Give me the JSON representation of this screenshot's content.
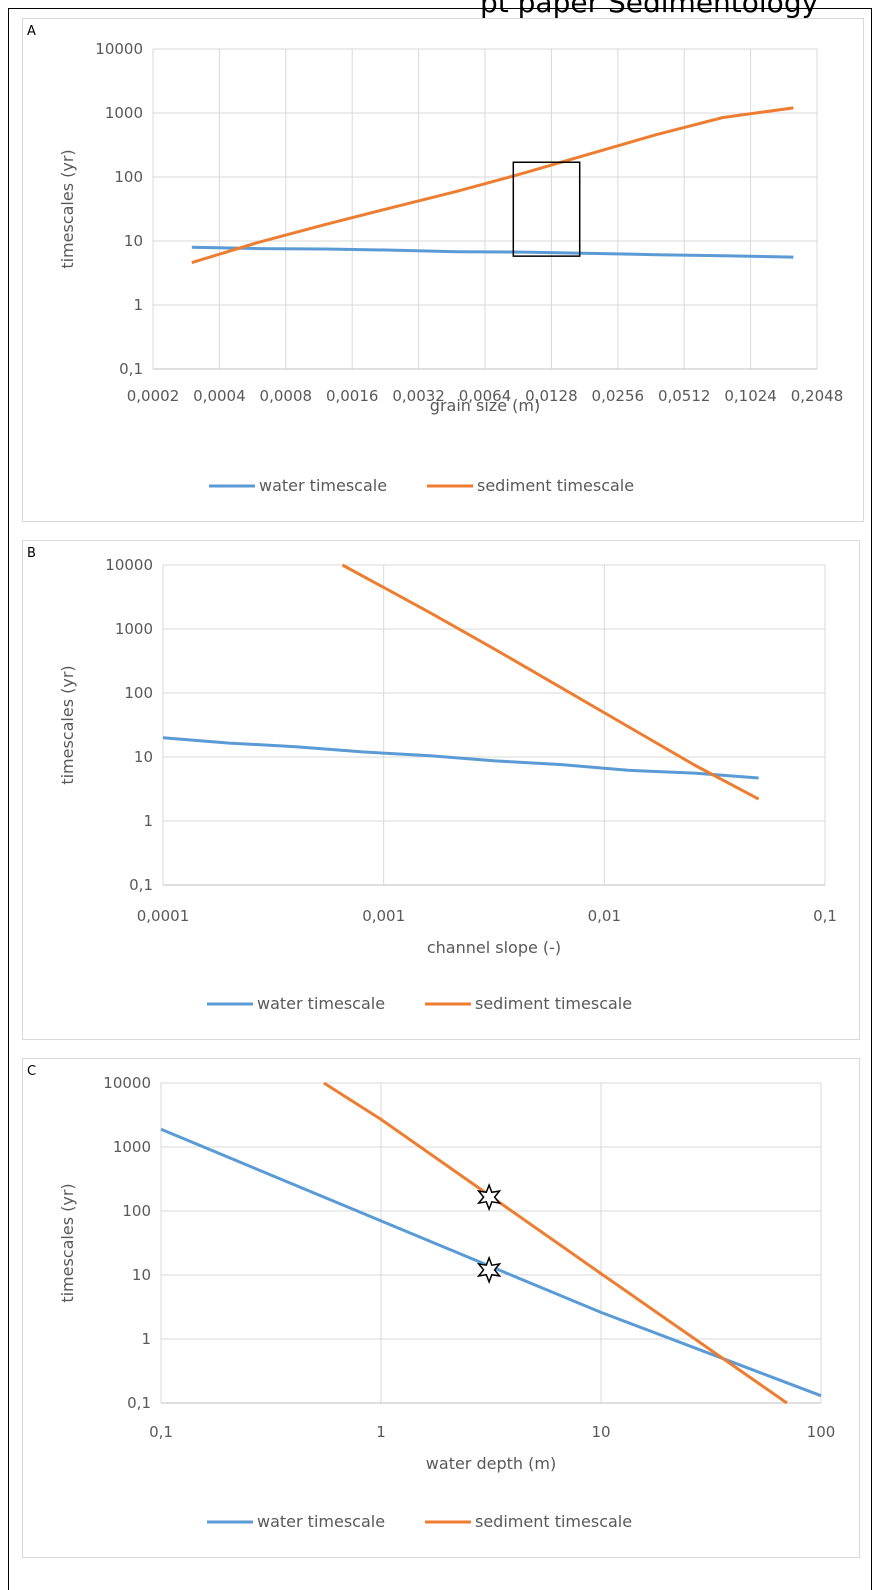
{
  "page": {
    "title": "pt paper Sedimentology"
  },
  "chart_data": [
    {
      "panel_label": "A",
      "type": "line",
      "xscale": "log",
      "yscale": "log",
      "xlabel": "grain size (m)",
      "ylabel": "timescales (yr)",
      "xlim": [
        0.0002,
        0.2048
      ],
      "ylim": [
        0.1,
        10000
      ],
      "x_ticks": [
        "0,0002",
        "0,0004",
        "0,0008",
        "0,0016",
        "0,0032",
        "0,0064",
        "0,0128",
        "0,0256",
        "0,0512",
        "0,1024",
        "0,2048"
      ],
      "y_ticks": [
        "0,1",
        "1",
        "10",
        "100",
        "1000",
        "10000"
      ],
      "grid": "both",
      "legend": "bottom",
      "series": [
        {
          "name": "water timescale",
          "color": "#5b9bd5",
          "x": [
            0.0003,
            0.0006,
            0.0012,
            0.0024,
            0.0048,
            0.0096,
            0.0192,
            0.0384,
            0.0768,
            0.16
          ],
          "y": [
            8.0,
            7.6,
            7.5,
            7.2,
            6.8,
            6.7,
            6.4,
            6.1,
            5.9,
            5.6
          ]
        },
        {
          "name": "sediment timescale",
          "color": "#ed7d31",
          "x": [
            0.0003,
            0.0006,
            0.0012,
            0.0024,
            0.0048,
            0.0096,
            0.0192,
            0.0384,
            0.0768,
            0.16
          ],
          "y": [
            4.6,
            9.5,
            18,
            33,
            60,
            115,
            230,
            460,
            850,
            1200
          ]
        }
      ],
      "annotations": [
        {
          "type": "rectangle",
          "x": [
            0.0086,
            0.0172
          ],
          "y": [
            5.8,
            170
          ]
        }
      ]
    },
    {
      "panel_label": "B",
      "type": "line",
      "xscale": "log",
      "yscale": "log",
      "xlabel": "channel slope (-)",
      "ylabel": "timescales (yr)",
      "xlim": [
        0.0001,
        0.1
      ],
      "ylim": [
        0.1,
        10000
      ],
      "x_ticks": [
        "0,0001",
        "0,001",
        "0,01",
        "0,1"
      ],
      "y_ticks": [
        "0,1",
        "1",
        "10",
        "100",
        "1000",
        "10000"
      ],
      "grid": "both",
      "legend": "bottom",
      "series": [
        {
          "name": "water timescale",
          "color": "#5b9bd5",
          "x": [
            0.0001,
            0.0002,
            0.0004,
            0.0008,
            0.0016,
            0.0032,
            0.0064,
            0.0128,
            0.0256,
            0.05
          ],
          "y": [
            20,
            16.5,
            14.5,
            12,
            10.5,
            8.7,
            7.6,
            6.2,
            5.6,
            4.7
          ]
        },
        {
          "name": "sediment timescale",
          "color": "#ed7d31",
          "x": [
            0.00065,
            0.0016,
            0.0032,
            0.0064,
            0.0128,
            0.0256,
            0.05
          ],
          "y": [
            10000,
            1850,
            480,
            120,
            30,
            7.5,
            2.2
          ]
        }
      ]
    },
    {
      "panel_label": "C",
      "type": "line",
      "xscale": "log",
      "yscale": "log",
      "xlabel": "water depth (m)",
      "ylabel": "timescales (yr)",
      "xlim": [
        0.1,
        100
      ],
      "ylim": [
        0.1,
        10000
      ],
      "x_ticks": [
        "0,1",
        "1",
        "10",
        "100"
      ],
      "y_ticks": [
        "0,1",
        "1",
        "10",
        "100",
        "1000",
        "10000"
      ],
      "grid": "both",
      "legend": "bottom",
      "series": [
        {
          "name": "water timescale",
          "color": "#5b9bd5",
          "x": [
            0.1,
            1,
            10,
            100
          ],
          "y": [
            1900,
            70,
            2.6,
            0.13
          ]
        },
        {
          "name": "sediment timescale",
          "color": "#ed7d31",
          "x": [
            0.55,
            1,
            10,
            70
          ],
          "y": [
            10000,
            2700,
            10.5,
            0.1
          ]
        }
      ],
      "markers": [
        {
          "shape": "star",
          "x": 3.1,
          "y": 165
        },
        {
          "shape": "star",
          "x": 3.1,
          "y": 12
        }
      ]
    }
  ]
}
